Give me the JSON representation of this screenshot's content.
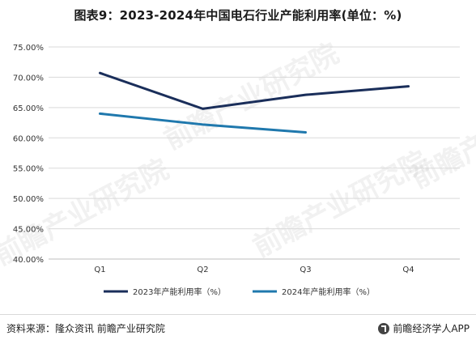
{
  "title": "图表9：2023-2024年中国电石行业产能利用率(单位：%)",
  "source": "资料来源：隆众资讯 前瞻产业研究院",
  "brand": "前瞻经济学人APP",
  "watermark": "前瞻产业研究院",
  "colors": {
    "series_2023": "#1a2e5a",
    "series_2024": "#1f78ad",
    "grid": "#d9d9d9"
  },
  "chart_data": {
    "type": "line",
    "title": "图表9：2023-2024年中国电石行业产能利用率(单位：%)",
    "categories": [
      "Q1",
      "Q2",
      "Q3",
      "Q4"
    ],
    "y_ticks": [
      "40.00%",
      "45.00%",
      "50.00%",
      "55.00%",
      "60.00%",
      "65.00%",
      "70.00%",
      "75.00%"
    ],
    "ylim": [
      40,
      75
    ],
    "grid": true,
    "legend_position": "bottom",
    "series": [
      {
        "name": "2023年产能利用率（%）",
        "values": [
          70.7,
          64.8,
          67.1,
          68.5
        ]
      },
      {
        "name": "2024年产能利用率（%）",
        "values": [
          64.0,
          62.2,
          60.9,
          null
        ]
      }
    ]
  }
}
